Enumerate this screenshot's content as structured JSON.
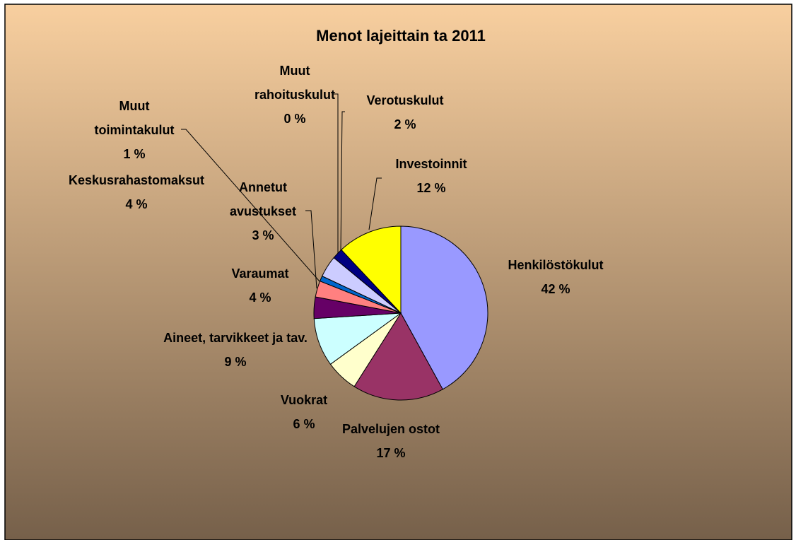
{
  "chart_data": {
    "type": "pie",
    "title": "Menot lajeittain ta 2011",
    "categories": [
      "Henkilöstökulut",
      "Palvelujen ostot",
      "Vuokrat",
      "Aineet, tarvikkeet ja tav.",
      "Varaumat",
      "Annetut avustukset",
      "Muut toimintakulut",
      "Keskusrahastomaksut",
      "Muut rahoituskulut",
      "Verotuskulut",
      "Investoinnit"
    ],
    "values": [
      42,
      17,
      6,
      9,
      4,
      3,
      1,
      4,
      0,
      2,
      12
    ],
    "value_labels": [
      "42 %",
      "17 %",
      "6 %",
      "9 %",
      "4 %",
      "3 %",
      "1 %",
      "4 %",
      "0 %",
      "2 %",
      "12 %"
    ],
    "colors": [
      "#9999ff",
      "#993366",
      "#ffffcc",
      "#ccffff",
      "#660066",
      "#ff8080",
      "#0066cc",
      "#ccccff",
      "#000080",
      "#000080",
      "#ffff00"
    ]
  }
}
